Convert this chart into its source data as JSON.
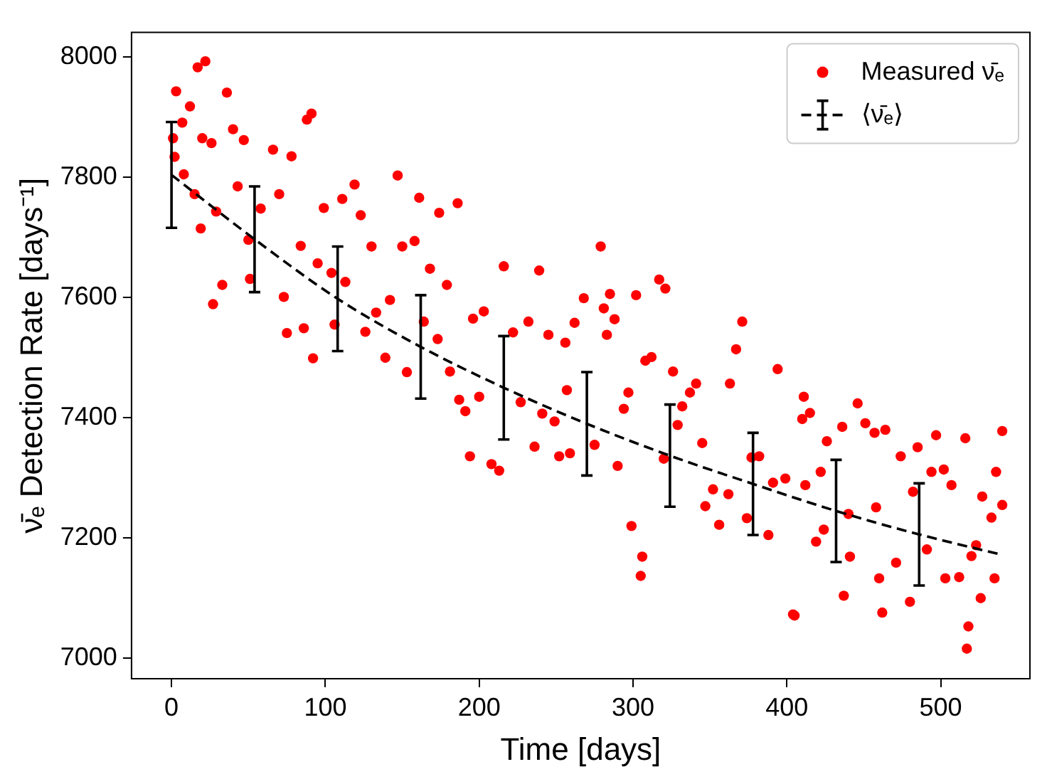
{
  "chart_data": {
    "type": "scatter",
    "xlabel": "Time [days]",
    "ylabel": "ν̄ₑ Detection Rate [days⁻¹]",
    "xlim": [
      -26,
      558
    ],
    "ylim": [
      6966,
      8041
    ],
    "xticks": [
      0,
      100,
      200,
      300,
      400,
      500
    ],
    "yticks": [
      7000,
      7200,
      7400,
      7600,
      7800,
      8000
    ],
    "grid": false,
    "legend": "top right",
    "series": [
      {
        "name": "Measured ν̄ₑ",
        "type": "scatter",
        "color": "#ff0000",
        "marker": "circle",
        "x": [
          3,
          1,
          2,
          7,
          8,
          12,
          15,
          17,
          19,
          22,
          20,
          26,
          27,
          29,
          33,
          36,
          40,
          43,
          47,
          50,
          51,
          58,
          66,
          70,
          73,
          75,
          78,
          84,
          86,
          88,
          91,
          92,
          95,
          99,
          104,
          106,
          111,
          113,
          119,
          123,
          126,
          130,
          133,
          139,
          142,
          147,
          150,
          153,
          158,
          161,
          164,
          168,
          173,
          174,
          179,
          181,
          186,
          187,
          191,
          194,
          196,
          200,
          203,
          208,
          213,
          216,
          222,
          227,
          232,
          236,
          239,
          241,
          245,
          249,
          252,
          257,
          256,
          259,
          262,
          268,
          275,
          279,
          281,
          283,
          285,
          288,
          290,
          294,
          297,
          299,
          302,
          305,
          306,
          308,
          312,
          317,
          320,
          321,
          326,
          329,
          332,
          337,
          341,
          345,
          347,
          352,
          356,
          362,
          363,
          367,
          371,
          374,
          377,
          382,
          388,
          391,
          394,
          399,
          404,
          405,
          410,
          411,
          412,
          415,
          419,
          422,
          424,
          426,
          436,
          437,
          440,
          441,
          446,
          451,
          457,
          458,
          460,
          462,
          464,
          471,
          474,
          480,
          482,
          485,
          491,
          494,
          497,
          502,
          503,
          507,
          512,
          516,
          517,
          518,
          520,
          523,
          526,
          527,
          533,
          535,
          536,
          540,
          540
        ],
        "values": [
          7943,
          7865,
          7834,
          7891,
          7805,
          7918,
          7772,
          7983,
          7715,
          7993,
          7865,
          7857,
          7589,
          7743,
          7621,
          7941,
          7880,
          7785,
          7862,
          7696,
          7631,
          7748,
          7846,
          7772,
          7601,
          7541,
          7835,
          7686,
          7549,
          7896,
          7906,
          7499,
          7657,
          7749,
          7641,
          7555,
          7764,
          7626,
          7788,
          7737,
          7543,
          7685,
          7575,
          7500,
          7596,
          7803,
          7685,
          7476,
          7694,
          7766,
          7560,
          7648,
          7531,
          7741,
          7621,
          7477,
          7757,
          7430,
          7411,
          7336,
          7565,
          7435,
          7577,
          7323,
          7312,
          7652,
          7542,
          7426,
          7560,
          7352,
          7645,
          7407,
          7538,
          7394,
          7336,
          7446,
          7525,
          7341,
          7558,
          7599,
          7355,
          7685,
          7582,
          7538,
          7606,
          7564,
          7320,
          7415,
          7442,
          7220,
          7604,
          7137,
          7169,
          7495,
          7501,
          7630,
          7332,
          7615,
          7477,
          7388,
          7419,
          7442,
          7457,
          7358,
          7253,
          7281,
          7222,
          7273,
          7457,
          7514,
          7560,
          7233,
          7334,
          7336,
          7205,
          7292,
          7481,
          7299,
          7073,
          7071,
          7398,
          7435,
          7288,
          7408,
          7194,
          7310,
          7214,
          7361,
          7385,
          7104,
          7240,
          7169,
          7424,
          7391,
          7375,
          7251,
          7133,
          7076,
          7380,
          7159,
          7336,
          7094,
          7277,
          7351,
          7181,
          7310,
          7371,
          7314,
          7133,
          7288,
          7135,
          7366,
          7016,
          7053,
          7170,
          7188,
          7100,
          7269,
          7234,
          7133,
          7310,
          7378,
          7255
        ]
      },
      {
        "name": "⟨ν̄ₑ⟩",
        "type": "line",
        "color": "#000000",
        "marker": "none",
        "line_style": "dashed",
        "x": [
          0,
          54,
          108,
          162,
          216,
          270,
          324,
          378,
          432,
          486,
          540
        ],
        "values": [
          7804,
          7697,
          7598,
          7518,
          7450,
          7390,
          7337,
          7290,
          7245,
          7206,
          7172
        ],
        "errors": [
          88,
          88,
          87,
          86,
          86,
          86,
          85,
          85,
          85,
          85,
          null
        ]
      }
    ]
  }
}
